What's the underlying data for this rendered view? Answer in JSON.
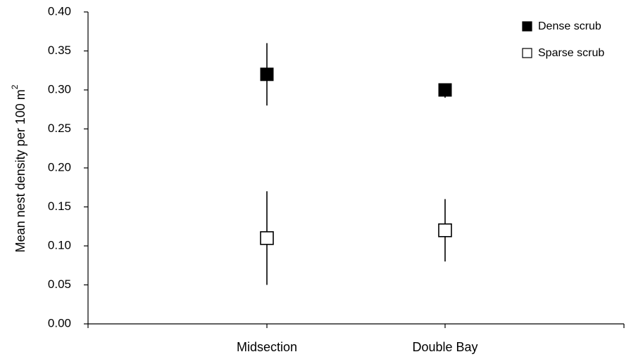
{
  "chart_data": {
    "type": "scatter",
    "title": "",
    "xlabel": "",
    "ylabel": "Mean nest density per 100 m",
    "ylabel_superscript": "2",
    "categories": [
      "Midsection",
      "Double Bay"
    ],
    "ylim": [
      0,
      0.4
    ],
    "yticks": [
      "0.00",
      "0.05",
      "0.10",
      "0.15",
      "0.20",
      "0.25",
      "0.30",
      "0.35",
      "0.40"
    ],
    "grid": false,
    "legend_position": "top-right",
    "series": [
      {
        "name": "Dense scrub",
        "marker": "filled-square",
        "color": "#000000",
        "values": [
          0.32,
          0.3
        ],
        "error_low": [
          0.28,
          0.29
        ],
        "error_high": [
          0.36,
          0.3
        ]
      },
      {
        "name": "Sparse scrub",
        "marker": "open-square",
        "color": "#000000",
        "values": [
          0.11,
          0.12
        ],
        "error_low": [
          0.05,
          0.08
        ],
        "error_high": [
          0.17,
          0.16
        ]
      }
    ]
  }
}
